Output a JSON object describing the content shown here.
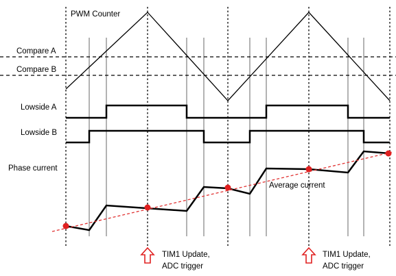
{
  "labels": {
    "pwm_counter": "PWM Counter",
    "compare_a": "Compare A",
    "compare_b": "Compare B",
    "lowside_a": "Lowside A",
    "lowside_b": "Lowside B",
    "phase_current": "Phase current",
    "average_current": "Average current"
  },
  "events": [
    {
      "line1": "TIM1 Update,",
      "line2": "ADC trigger"
    },
    {
      "line1": "TIM1 Update,",
      "line2": "ADC trigger"
    }
  ],
  "colors": {
    "signal": "#000000",
    "average_line": "#e03030",
    "sample_point": "#e02020",
    "event_arrow": "#e02020"
  }
}
